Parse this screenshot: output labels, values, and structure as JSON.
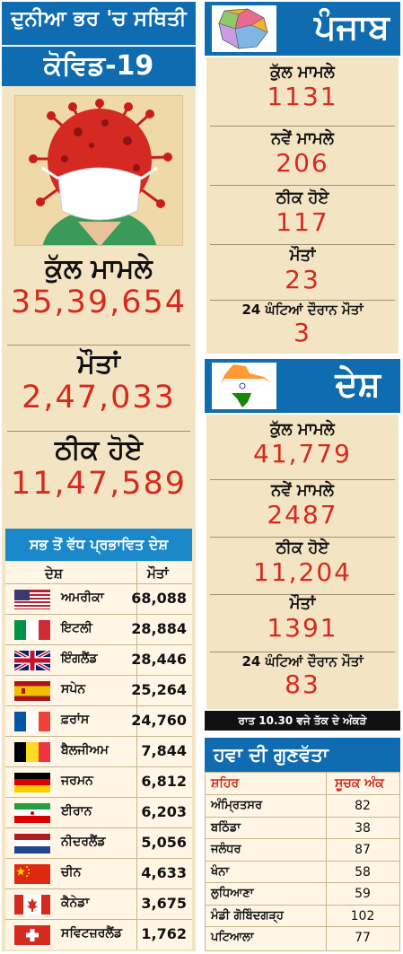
{
  "world": {
    "title": "ਦੁਨੀਆ ਭਰ 'ਚ ਸਥਿਤੀ",
    "subtitle": "ਕੋਵਿਡ-19",
    "stats": [
      {
        "label": "ਕੁੱਲ ਮਾਮਲੇ",
        "value": "35,39,654"
      },
      {
        "label": "ਮੌਤਾਂ",
        "value": "2,47,033"
      },
      {
        "label": "ਠੀਕ ਹੋਏ",
        "value": "11,47,589"
      }
    ],
    "countries_title": "ਸਭ ਤੋਂ ਵੱਧ ਪ੍ਰਭਾਵਿਤ ਦੇਸ਼",
    "col_country": "ਦੇਸ਼",
    "col_deaths": "ਮੌਤਾਂ",
    "countries": [
      {
        "name": "ਅਮਰੀਕਾ",
        "deaths": "68,088",
        "flag": "usa-flag"
      },
      {
        "name": "ਇਟਲੀ",
        "deaths": "28,884",
        "flag": "italy-flag"
      },
      {
        "name": "ਇੰਗਲੈਂਡ",
        "deaths": "28,446",
        "flag": "uk-flag"
      },
      {
        "name": "ਸਪੇਨ",
        "deaths": "25,264",
        "flag": "spain-flag"
      },
      {
        "name": "ਫ਼ਰਾਂਸ",
        "deaths": "24,760",
        "flag": "france-flag"
      },
      {
        "name": "ਬੈਲਜੀਅਮ",
        "deaths": "7,844",
        "flag": "belgium-flag"
      },
      {
        "name": "ਜਰਮਨ",
        "deaths": "6,812",
        "flag": "germany-flag"
      },
      {
        "name": "ਈਰਾਨ",
        "deaths": "6,203",
        "flag": "iran-flag"
      },
      {
        "name": "ਨੀਦਰਲੈਂਡ",
        "deaths": "5,056",
        "flag": "netherlands-flag"
      },
      {
        "name": "ਚੀਨ",
        "deaths": "4,633",
        "flag": "china-flag"
      },
      {
        "name": "ਕੈਨੇਡਾ",
        "deaths": "3,675",
        "flag": "canada-flag"
      },
      {
        "name": "ਸਵਿਟਜ਼ਰਲੈਂਡ",
        "deaths": "1,762",
        "flag": "switzerland-flag"
      }
    ]
  },
  "punjab": {
    "title": "ਪੰਜਾਬ",
    "stats": [
      {
        "label": "ਕੁੱਲ ਮਾਮਲੇ",
        "value": "1131"
      },
      {
        "label": "ਨਵੇਂ ਮਾਮਲੇ",
        "value": "206"
      },
      {
        "label": "ਠੀਕ ਹੋਏ",
        "value": "117"
      },
      {
        "label": "ਮੌਤਾਂ",
        "value": "23"
      },
      {
        "label": "24 ਘੰਟਿਆਂ ਦੌਰਾਨ ਮੌਤਾਂ",
        "value": "3"
      }
    ]
  },
  "country": {
    "title": "ਦੇਸ਼",
    "stats": [
      {
        "label": "ਕੁੱਲ ਮਾਮਲੇ",
        "value": "41,779"
      },
      {
        "label": "ਨਵੇਂ ਮਾਮਲੇ",
        "value": "2487"
      },
      {
        "label": "ਠੀਕ ਹੋਏ",
        "value": "11,204"
      },
      {
        "label": "ਮੌਤਾਂ",
        "value": "1391"
      },
      {
        "label": "24 ਘੰਟਿਆਂ ਦੌਰਾਨ ਮੌਤਾਂ",
        "value": "83"
      }
    ],
    "note": "ਰਾਤ 10.30 ਵਜੇ ਤੱਕ ਦੇ ਅੰਕੜੇ"
  },
  "air": {
    "title": "ਹਵਾ ਦੀ ਗੁਣਵੱਤਾ",
    "col_city": "ਸ਼ਹਿਰ",
    "col_index": "ਸੂਚਕ ਅੰਕ",
    "rows": [
      {
        "city": "ਅੰਮ੍ਰਿਤਸਰ",
        "index": "82"
      },
      {
        "city": "ਬਠਿੰਡਾ",
        "index": "38"
      },
      {
        "city": "ਜਲੰਧਰ",
        "index": "87"
      },
      {
        "city": "ਖੰਨਾ",
        "index": "58"
      },
      {
        "city": "ਲੁਧਿਆਣਾ",
        "index": "59"
      },
      {
        "city": "ਮੰਡੀ ਗੋਬਿੰਦਗੜ੍ਹ",
        "index": "102"
      },
      {
        "city": "ਪਟਿਆਲਾ",
        "index": "77"
      }
    ]
  },
  "colors": {
    "accent": "#0f6cb0",
    "value_red": "#d52b1e",
    "panel_bg": "#f3e4c4"
  }
}
